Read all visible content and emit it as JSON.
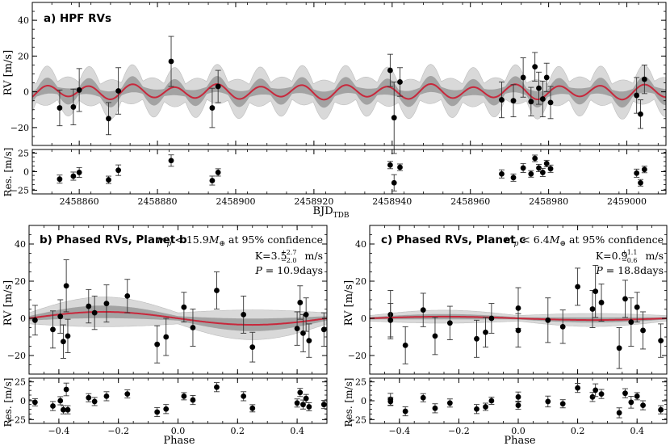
{
  "chart_data": [
    {
      "type": "scatter",
      "title": "a) HPF RVs",
      "xlabel": "BJD",
      "xlabel_sub": "TDB",
      "ylabel": "RV [m/s]",
      "resid_ylabel": "Res. [m/s]",
      "xlim": [
        2458848,
        2459010
      ],
      "ylim": [
        -30,
        50
      ],
      "resid_ylim": [
        -30,
        30
      ],
      "xticks": [
        2458860,
        2458880,
        2458900,
        2458920,
        2458940,
        2458960,
        2458980,
        2459000
      ],
      "xticklabels": [
        "2458860",
        "2458880",
        "2458900",
        "2458920",
        "2458940",
        "2458960",
        "2458980",
        "2459000"
      ],
      "yticks": [
        -20,
        0,
        20,
        40
      ],
      "yticklabels": [
        "−20",
        "0",
        "20",
        "40"
      ],
      "resid_yticks": [
        -25,
        0,
        25
      ],
      "resid_yticklabels": [
        "−25",
        "0",
        "25"
      ],
      "model": {
        "color": "#c8283c",
        "components": [
          {
            "amp": 3.5,
            "period": 10.9,
            "phase0": 2458849
          },
          {
            "amp": 0.9,
            "period": 18.8,
            "phase0": 2458852
          }
        ]
      },
      "points": [
        {
          "x": 2458855.0,
          "y": -9.0,
          "err": 10.0,
          "res": -10.0
        },
        {
          "x": 2458858.5,
          "y": -8.5,
          "err": 10.0,
          "res": -6.0
        },
        {
          "x": 2458860.0,
          "y": 1.0,
          "err": 12.0,
          "res": -1.0
        },
        {
          "x": 2458867.5,
          "y": -15.0,
          "err": 9.0,
          "res": -11.0
        },
        {
          "x": 2458870.0,
          "y": 0.5,
          "err": 13.0,
          "res": 2.0
        },
        {
          "x": 2458883.5,
          "y": 17.0,
          "err": 14.0,
          "res": 15.0
        },
        {
          "x": 2458894.0,
          "y": -9.0,
          "err": 11.0,
          "res": -12.0
        },
        {
          "x": 2458895.5,
          "y": 3.0,
          "err": 9.0,
          "res": -1.0
        },
        {
          "x": 2458939.5,
          "y": 12.0,
          "err": 9.0,
          "res": 9.0
        },
        {
          "x": 2458940.5,
          "y": -14.5,
          "err": 20.0,
          "res": -15.0
        },
        {
          "x": 2458942.0,
          "y": 5.5,
          "err": 8.0,
          "res": 6.0
        },
        {
          "x": 2458968.0,
          "y": -4.5,
          "err": 10.0,
          "res": -3.0
        },
        {
          "x": 2458971.0,
          "y": -5.0,
          "err": 9.0,
          "res": -8.0
        },
        {
          "x": 2458973.5,
          "y": 8.0,
          "err": 11.0,
          "res": 5.0
        },
        {
          "x": 2458975.5,
          "y": -5.5,
          "err": 8.0,
          "res": -3.0
        },
        {
          "x": 2458976.5,
          "y": 14.0,
          "err": 8.0,
          "res": 18.0
        },
        {
          "x": 2458977.5,
          "y": 2.0,
          "err": 9.0,
          "res": 5.0
        },
        {
          "x": 2458978.5,
          "y": -4.0,
          "err": 10.0,
          "res": -1.0
        },
        {
          "x": 2458979.5,
          "y": 8.0,
          "err": 8.0,
          "res": 11.0
        },
        {
          "x": 2458980.5,
          "y": -6.0,
          "err": 9.0,
          "res": 4.0
        },
        {
          "x": 2459002.5,
          "y": -2.0,
          "err": 10.0,
          "res": -2.0
        },
        {
          "x": 2459003.5,
          "y": -12.5,
          "err": 8.0,
          "res": -15.0
        },
        {
          "x": 2459004.5,
          "y": 7.0,
          "err": 8.0,
          "res": 3.0
        }
      ]
    },
    {
      "type": "scatter",
      "title": "b) Phased RVs, Planet b",
      "xlabel": "Phase",
      "ylabel": "RV [m/s]",
      "resid_ylabel": "Res. [m/s]",
      "xlim": [
        -0.5,
        0.5
      ],
      "ylim": [
        -30,
        50
      ],
      "resid_ylim": [
        -30,
        30
      ],
      "xticks": [
        -0.4,
        -0.2,
        0.0,
        0.2,
        0.4
      ],
      "xticklabels": [
        "−0.4",
        "−0.2",
        "0.0",
        "0.2",
        "0.4"
      ],
      "yticks": [
        -20,
        0,
        20,
        40
      ],
      "yticklabels": [
        "−20",
        "0",
        "20",
        "40"
      ],
      "resid_yticks": [
        -25,
        0,
        25
      ],
      "resid_yticklabels": [
        "−25",
        "0",
        "25"
      ],
      "annotation": {
        "line1": "m_p < 15.9M_⊕ at 95% confidence",
        "mass_sym": "m",
        "mass_sub": "p",
        "mass_text": " < 15.9",
        "mass_unit": "M",
        "mass_unit_sub": "⊕",
        "mass_tail": " at 95% confidence",
        "k_label": "K=3.5",
        "k_up": "+2.7",
        "k_down": "−2.0",
        "k_unit": "m/s",
        "p_label": "P",
        "p_value": " = 10.9days"
      },
      "model": {
        "color": "#c8283c",
        "amp": 3.5,
        "peak_phase": -0.25
      },
      "points": [
        {
          "x": -0.48,
          "y": -1.0,
          "err": 8.0,
          "res": -2.0
        },
        {
          "x": -0.42,
          "y": -6.0,
          "err": 10.0,
          "res": -7.0
        },
        {
          "x": -0.395,
          "y": 1.0,
          "err": 9.0,
          "res": 0.0
        },
        {
          "x": -0.385,
          "y": -12.5,
          "err": 9.0,
          "res": -12.0
        },
        {
          "x": -0.375,
          "y": 17.5,
          "err": 14.0,
          "res": 15.0
        },
        {
          "x": -0.37,
          "y": -9.5,
          "err": 9.0,
          "res": -12.0
        },
        {
          "x": -0.3,
          "y": 6.5,
          "err": 9.0,
          "res": 4.0
        },
        {
          "x": -0.28,
          "y": 3.0,
          "err": 9.0,
          "res": -1.0
        },
        {
          "x": -0.24,
          "y": 8.0,
          "err": 10.0,
          "res": 6.0
        },
        {
          "x": -0.17,
          "y": 12.0,
          "err": 9.0,
          "res": 9.0
        },
        {
          "x": -0.07,
          "y": -14.0,
          "err": 10.0,
          "res": -15.0
        },
        {
          "x": -0.04,
          "y": -10.0,
          "err": 10.0,
          "res": -11.0
        },
        {
          "x": 0.02,
          "y": 6.0,
          "err": 8.0,
          "res": 6.0
        },
        {
          "x": 0.05,
          "y": -5.0,
          "err": 10.0,
          "res": 1.0
        },
        {
          "x": 0.13,
          "y": 15.0,
          "err": 10.0,
          "res": 18.0
        },
        {
          "x": 0.22,
          "y": 2.0,
          "err": 10.0,
          "res": 6.0
        },
        {
          "x": 0.25,
          "y": -15.5,
          "err": 8.0,
          "res": -10.0
        },
        {
          "x": 0.4,
          "y": -5.5,
          "err": 9.0,
          "res": -3.0
        },
        {
          "x": 0.41,
          "y": 8.5,
          "err": 9.0,
          "res": 11.0
        },
        {
          "x": 0.42,
          "y": -8.0,
          "err": 10.0,
          "res": -5.0
        },
        {
          "x": 0.43,
          "y": 2.0,
          "err": 9.0,
          "res": 3.0
        },
        {
          "x": 0.44,
          "y": -12.0,
          "err": 9.0,
          "res": -8.0
        },
        {
          "x": 0.49,
          "y": -6.0,
          "err": 9.0,
          "res": -5.0
        }
      ]
    },
    {
      "type": "scatter",
      "title": "c) Phased RVs, Planet c",
      "xlabel": "Phase",
      "ylabel": "RV [m/s]",
      "resid_ylabel": "Res. [m/s]",
      "xlim": [
        -0.5,
        0.5
      ],
      "ylim": [
        -30,
        50
      ],
      "resid_ylim": [
        -30,
        30
      ],
      "xticks": [
        -0.4,
        -0.2,
        0.0,
        0.2,
        0.4
      ],
      "xticklabels": [
        "−0.4",
        "−0.2",
        "0.0",
        "0.2",
        "0.4"
      ],
      "yticks": [
        -20,
        0,
        20,
        40
      ],
      "yticklabels": [
        "−20",
        "0",
        "20",
        "40"
      ],
      "resid_yticks": [
        -25,
        0,
        25
      ],
      "resid_yticklabels": [
        "−25",
        "0",
        "25"
      ],
      "annotation": {
        "mass_sym": "m",
        "mass_sub": "p",
        "mass_text": " < 6.4",
        "mass_unit": "M",
        "mass_unit_sub": "⊕",
        "mass_tail": " at 95% confidence",
        "k_label": "K=0.9",
        "k_up": "+1.1",
        "k_down": "−0.6",
        "k_unit": "m/s",
        "p_label": "P",
        "p_value": " = 18.8days"
      },
      "model": {
        "color": "#c8283c",
        "amp": 0.9,
        "peak_phase": -0.25
      },
      "points": [
        {
          "x": -0.43,
          "y": 2.0,
          "err": 13.0,
          "res": 2.0
        },
        {
          "x": -0.43,
          "y": -1.0,
          "err": 9.0,
          "res": -1.0
        },
        {
          "x": -0.38,
          "y": -14.5,
          "err": 10.0,
          "res": -14.0
        },
        {
          "x": -0.32,
          "y": 4.5,
          "err": 9.0,
          "res": 4.0
        },
        {
          "x": -0.28,
          "y": -9.5,
          "err": 10.0,
          "res": -10.0
        },
        {
          "x": -0.23,
          "y": -2.5,
          "err": 9.0,
          "res": -3.0
        },
        {
          "x": -0.14,
          "y": -11.0,
          "err": 10.0,
          "res": -11.0
        },
        {
          "x": -0.11,
          "y": -7.5,
          "err": 8.0,
          "res": -8.0
        },
        {
          "x": -0.09,
          "y": 0.0,
          "err": 8.0,
          "res": 0.0
        },
        {
          "x": 0.0,
          "y": 5.5,
          "err": 11.0,
          "res": 5.0
        },
        {
          "x": 0.0,
          "y": -6.5,
          "err": 9.0,
          "res": -6.0
        },
        {
          "x": 0.1,
          "y": -1.0,
          "err": 12.0,
          "res": -1.0
        },
        {
          "x": 0.15,
          "y": -4.5,
          "err": 9.0,
          "res": -4.0
        },
        {
          "x": 0.2,
          "y": 17.0,
          "err": 10.0,
          "res": 17.0
        },
        {
          "x": 0.25,
          "y": 5.0,
          "err": 10.0,
          "res": 5.0
        },
        {
          "x": 0.26,
          "y": 14.5,
          "err": 14.0,
          "res": 14.0
        },
        {
          "x": 0.28,
          "y": 8.5,
          "err": 10.0,
          "res": 9.0
        },
        {
          "x": 0.34,
          "y": -16.0,
          "err": 11.0,
          "res": -16.0
        },
        {
          "x": 0.36,
          "y": 10.5,
          "err": 10.0,
          "res": 10.0
        },
        {
          "x": 0.38,
          "y": -2.0,
          "err": 13.0,
          "res": -2.0
        },
        {
          "x": 0.4,
          "y": 6.0,
          "err": 8.0,
          "res": 6.0
        },
        {
          "x": 0.42,
          "y": -6.5,
          "err": 10.0,
          "res": -6.0
        },
        {
          "x": 0.48,
          "y": -12.0,
          "err": 9.0,
          "res": -12.0
        }
      ]
    }
  ]
}
